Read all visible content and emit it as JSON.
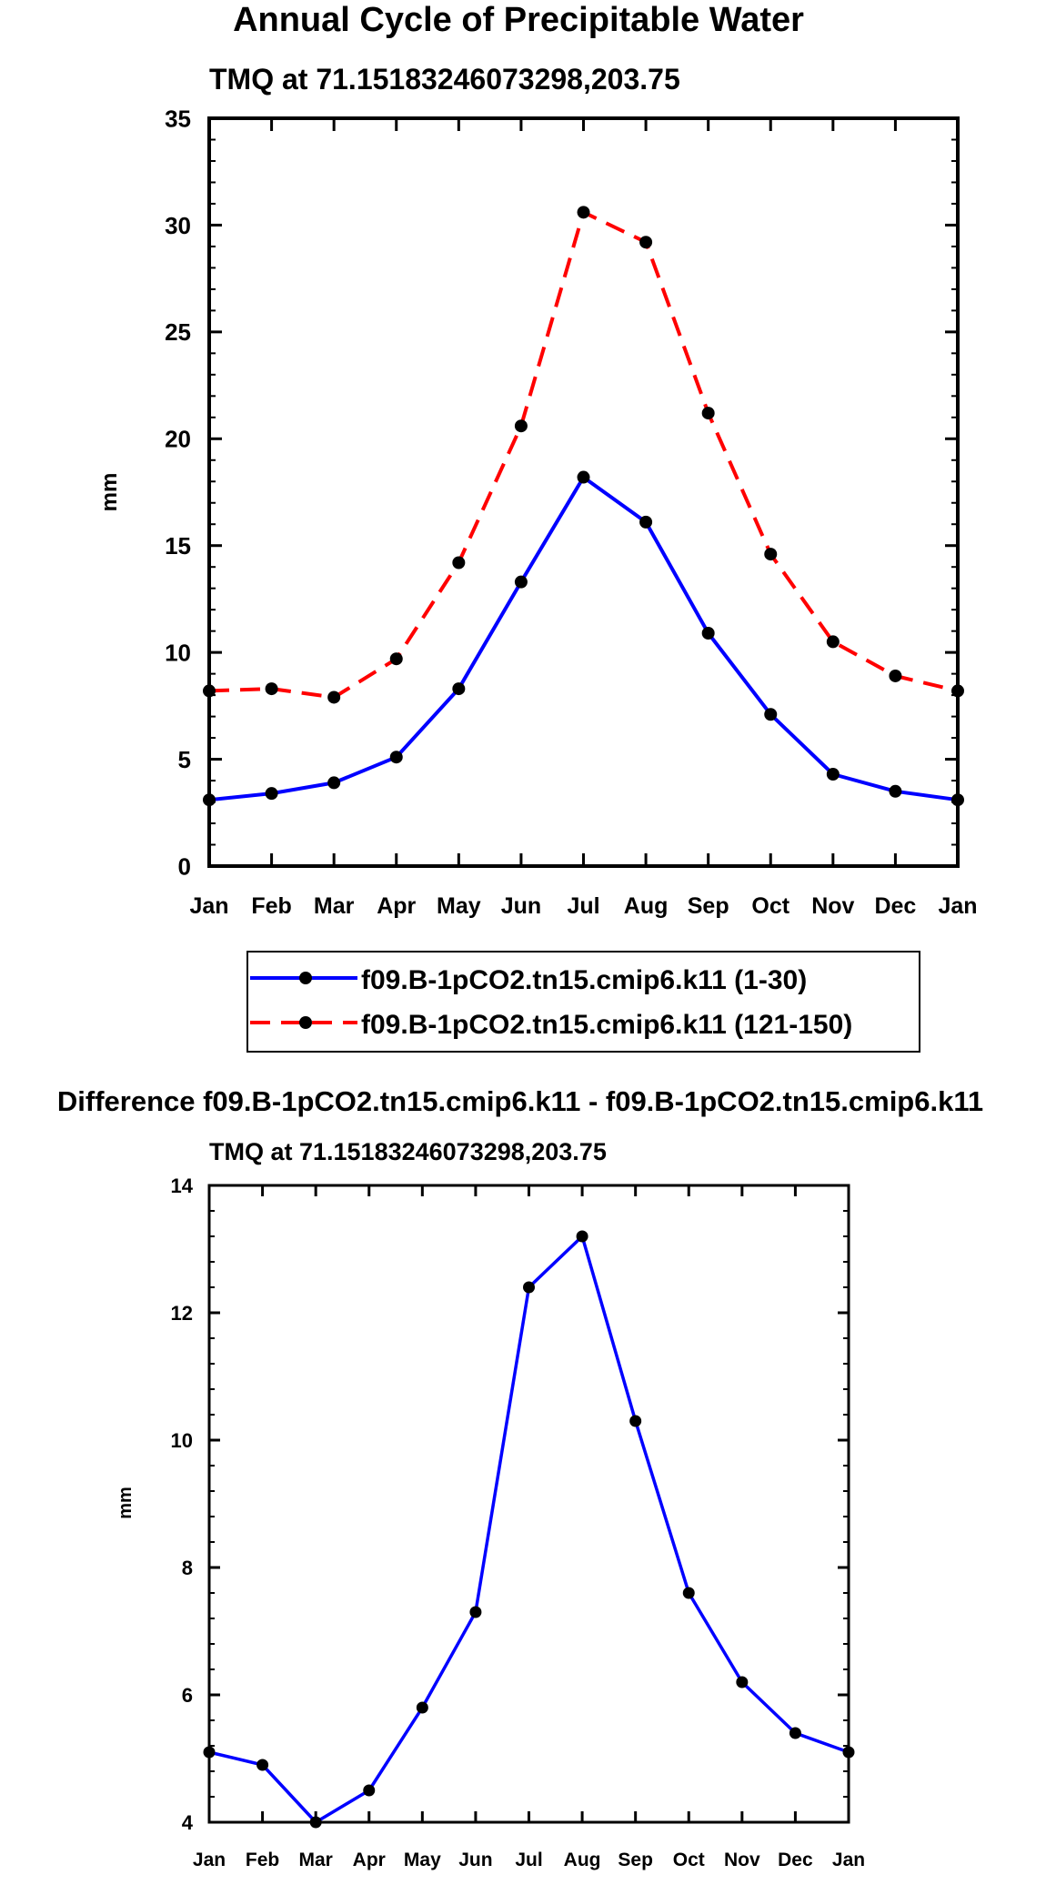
{
  "chart_data": [
    {
      "type": "line",
      "title": "Annual Cycle of Precipitable Water",
      "subtitle": "TMQ at 71.15183246073298,203.75",
      "xlabel": "",
      "ylabel": "mm",
      "categories": [
        "Jan",
        "Feb",
        "Mar",
        "Apr",
        "May",
        "Jun",
        "Jul",
        "Aug",
        "Sep",
        "Oct",
        "Nov",
        "Dec",
        "Jan"
      ],
      "ylim": [
        0,
        35
      ],
      "yticks": [
        "0",
        "5",
        "10",
        "15",
        "20",
        "25",
        "30",
        "35"
      ],
      "grid": false,
      "legend_position": "bottom",
      "series": [
        {
          "name": "f09.B-1pCO2.tn15.cmip6.k11 (1-30)",
          "style": "solid",
          "color": "#0000ff",
          "values": [
            3.1,
            3.4,
            3.9,
            5.1,
            8.3,
            13.3,
            18.2,
            16.1,
            10.9,
            7.1,
            4.3,
            3.5,
            3.1
          ]
        },
        {
          "name": "f09.B-1pCO2.tn15.cmip6.k11 (121-150)",
          "style": "dashed",
          "color": "#ff0000",
          "values": [
            8.2,
            8.3,
            7.9,
            9.7,
            14.2,
            20.6,
            30.6,
            29.2,
            21.2,
            14.6,
            10.5,
            8.9,
            8.2
          ]
        }
      ]
    },
    {
      "type": "line",
      "title": "Difference f09.B-1pCO2.tn15.cmip6.k11 - f09.B-1pCO2.tn15.cmip6.k11",
      "subtitle": "TMQ at 71.15183246073298,203.75",
      "xlabel": "",
      "ylabel": "mm",
      "categories": [
        "Jan",
        "Feb",
        "Mar",
        "Apr",
        "May",
        "Jun",
        "Jul",
        "Aug",
        "Sep",
        "Oct",
        "Nov",
        "Dec",
        "Jan"
      ],
      "ylim": [
        4,
        14
      ],
      "yticks": [
        "4",
        "6",
        "8",
        "10",
        "12",
        "14"
      ],
      "grid": false,
      "series": [
        {
          "name": "Difference",
          "style": "solid",
          "color": "#0000ff",
          "values": [
            5.1,
            4.9,
            4.0,
            4.5,
            5.8,
            7.3,
            12.4,
            13.2,
            10.3,
            7.6,
            6.2,
            5.4,
            5.1
          ]
        }
      ]
    }
  ]
}
